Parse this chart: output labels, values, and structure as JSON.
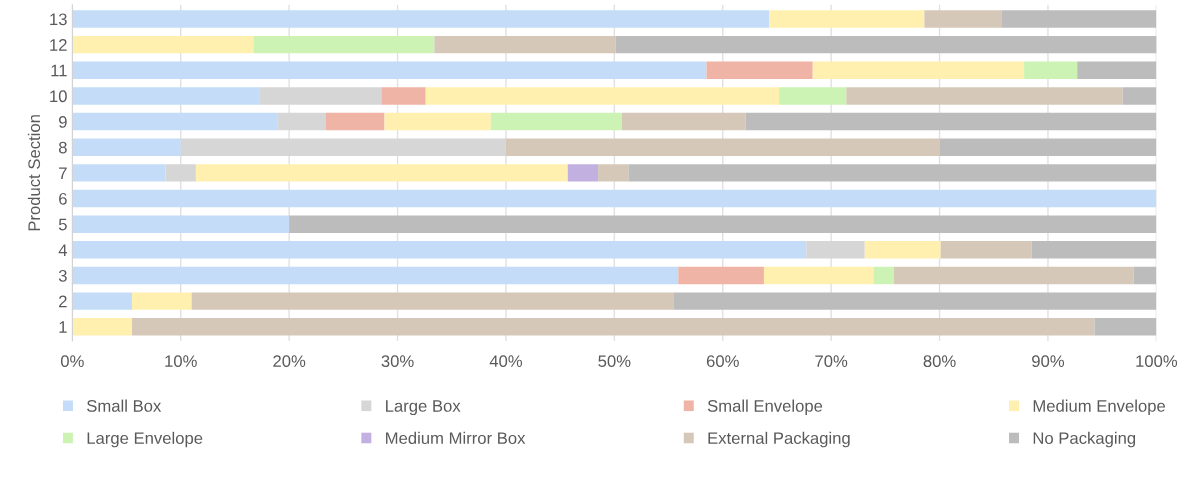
{
  "chart_data": {
    "type": "bar",
    "orientation": "horizontal",
    "stacked": true,
    "ylabel": "Product Section",
    "categories": [
      "13",
      "12",
      "11",
      "10",
      "9",
      "8",
      "7",
      "6",
      "5",
      "4",
      "3",
      "2",
      "1"
    ],
    "series": [
      {
        "name": "Small Box",
        "color": "#c4dcf7",
        "values": [
          64.3,
          0,
          58.5,
          17.3,
          18.9,
          10,
          8.6,
          100,
          20,
          67.7,
          55.9,
          5.5,
          0
        ]
      },
      {
        "name": "Large Box",
        "color": "#d6d6d6",
        "values": [
          0,
          0,
          0,
          11.2,
          4.5,
          30,
          2.8,
          0,
          0,
          5.4,
          0,
          0,
          0
        ]
      },
      {
        "name": "Small Envelope",
        "color": "#f0b4a6",
        "values": [
          0,
          0,
          9.8,
          4.1,
          5.4,
          0,
          0,
          0,
          0,
          0,
          7.9,
          0,
          0
        ]
      },
      {
        "name": "Medium Envelope",
        "color": "#fff0b0",
        "values": [
          14.3,
          16.7,
          19.5,
          32.6,
          9.8,
          0,
          34.3,
          0,
          0,
          7.0,
          10.1,
          5.5,
          5.5
        ]
      },
      {
        "name": "Large Envelope",
        "color": "#cdf3b4",
        "values": [
          0,
          16.7,
          4.9,
          6.2,
          12.1,
          0,
          0,
          0,
          0,
          0,
          1.9,
          0,
          0
        ]
      },
      {
        "name": "Medium Mirror Box",
        "color": "#c2b0e0",
        "values": [
          0,
          0,
          0,
          0,
          0,
          0,
          2.8,
          0,
          0,
          0,
          0,
          0,
          0
        ]
      },
      {
        "name": "External Packaging",
        "color": "#d6c8b8",
        "values": [
          7.1,
          16.7,
          0,
          25.5,
          11.4,
          40,
          2.8,
          0,
          0,
          8.4,
          22.1,
          44.5,
          88.8
        ]
      },
      {
        "name": "No Packaging",
        "color": "#bcbcbc",
        "values": [
          14.3,
          50,
          7.3,
          3.1,
          37.9,
          20,
          48.7,
          0,
          80,
          11.5,
          2.1,
          44.5,
          5.7
        ]
      }
    ],
    "xlim": [
      0,
      100
    ],
    "xticks": [
      {
        "value": 0,
        "label": "0%"
      },
      {
        "value": 10,
        "label": "10%"
      },
      {
        "value": 20,
        "label": "20%"
      },
      {
        "value": 30,
        "label": "30%"
      },
      {
        "value": 40,
        "label": "40%"
      },
      {
        "value": 50,
        "label": "50%"
      },
      {
        "value": 60,
        "label": "60%"
      },
      {
        "value": 70,
        "label": "70%"
      },
      {
        "value": 80,
        "label": "80%"
      },
      {
        "value": 90,
        "label": "90%"
      },
      {
        "value": 100,
        "label": "100%"
      }
    ],
    "grid": "x",
    "legend": "bottom"
  }
}
